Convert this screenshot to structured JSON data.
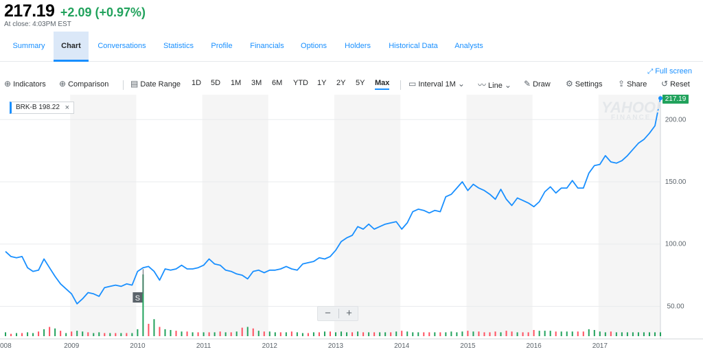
{
  "quote": {
    "price": "217.19",
    "change": "+2.09 (+0.97%)",
    "close_time": "At close: 4:03PM EST"
  },
  "tabs": [
    "Summary",
    "Chart",
    "Conversations",
    "Statistics",
    "Profile",
    "Financials",
    "Options",
    "Holders",
    "Historical Data",
    "Analysts"
  ],
  "active_tab": "Chart",
  "fullscreen_label": "Full screen",
  "toolbar": {
    "indicators": "Indicators",
    "comparison": "Comparison",
    "date_range": "Date Range",
    "ranges": [
      "1D",
      "5D",
      "1M",
      "3M",
      "6M",
      "YTD",
      "1Y",
      "2Y",
      "5Y",
      "Max"
    ],
    "selected_range": "Max",
    "interval": "Interval",
    "interval_value": "1M",
    "line": "Line",
    "draw": "Draw",
    "settings": "Settings",
    "share": "Share",
    "reset": "Reset"
  },
  "legend": {
    "label": "BRK-B 198.22",
    "close": "×"
  },
  "watermark": {
    "line1": "YAHOO!",
    "line2": "FINANCE"
  },
  "zoom": {
    "minus": "−",
    "plus": "+"
  },
  "colors": {
    "line": "#188fff",
    "up": "#21a25c",
    "down": "#ff4f5f",
    "last_price_bg": "#21a25c",
    "shade": "#f5f5f5",
    "grid": "#e9ebed"
  },
  "chart_data": {
    "type": "line",
    "title": "",
    "series": [
      {
        "name": "BRK-B",
        "x": [
          "2008-01",
          "2008-02",
          "2008-03",
          "2008-04",
          "2008-05",
          "2008-06",
          "2008-07",
          "2008-08",
          "2008-09",
          "2008-10",
          "2008-11",
          "2008-12",
          "2009-01",
          "2009-02",
          "2009-03",
          "2009-04",
          "2009-05",
          "2009-06",
          "2009-07",
          "2009-08",
          "2009-09",
          "2009-10",
          "2009-11",
          "2009-12",
          "2010-01",
          "2010-02",
          "2010-03",
          "2010-04",
          "2010-05",
          "2010-06",
          "2010-07",
          "2010-08",
          "2010-09",
          "2010-10",
          "2010-11",
          "2010-12",
          "2011-01",
          "2011-02",
          "2011-03",
          "2011-04",
          "2011-05",
          "2011-06",
          "2011-07",
          "2011-08",
          "2011-09",
          "2011-10",
          "2011-11",
          "2011-12",
          "2012-01",
          "2012-02",
          "2012-03",
          "2012-04",
          "2012-05",
          "2012-06",
          "2012-07",
          "2012-08",
          "2012-09",
          "2012-10",
          "2012-11",
          "2012-12",
          "2013-01",
          "2013-02",
          "2013-03",
          "2013-04",
          "2013-05",
          "2013-06",
          "2013-07",
          "2013-08",
          "2013-09",
          "2013-10",
          "2013-11",
          "2013-12",
          "2014-01",
          "2014-02",
          "2014-03",
          "2014-04",
          "2014-05",
          "2014-06",
          "2014-07",
          "2014-08",
          "2014-09",
          "2014-10",
          "2014-11",
          "2014-12",
          "2015-01",
          "2015-02",
          "2015-03",
          "2015-04",
          "2015-05",
          "2015-06",
          "2015-07",
          "2015-08",
          "2015-09",
          "2015-10",
          "2015-11",
          "2015-12",
          "2016-01",
          "2016-02",
          "2016-03",
          "2016-04",
          "2016-05",
          "2016-06",
          "2016-07",
          "2016-08",
          "2016-09",
          "2016-10",
          "2016-11",
          "2016-12",
          "2017-01",
          "2017-02",
          "2017-03",
          "2017-04",
          "2017-05",
          "2017-06",
          "2017-07",
          "2017-08",
          "2017-09",
          "2017-10",
          "2017-11",
          "2017-12"
        ],
        "values": [
          94,
          90,
          89,
          90,
          81,
          78,
          79,
          88,
          81,
          74,
          68,
          64,
          60,
          52,
          56,
          61,
          60,
          58,
          65,
          66,
          67,
          66,
          68,
          67,
          78,
          81,
          82,
          78,
          71,
          80,
          79,
          80,
          83,
          80,
          80,
          81,
          83,
          88,
          84,
          83,
          79,
          78,
          76,
          75,
          72,
          78,
          79,
          77,
          79,
          79,
          80,
          82,
          80,
          79,
          84,
          85,
          86,
          89,
          88,
          90,
          95,
          102,
          105,
          107,
          114,
          112,
          116,
          112,
          114,
          116,
          117,
          118,
          112,
          117,
          126,
          128,
          127,
          125,
          127,
          126,
          138,
          140,
          145,
          150,
          143,
          148,
          145,
          143,
          140,
          136,
          144,
          136,
          131,
          137,
          135,
          133,
          130,
          134,
          142,
          146,
          141,
          145,
          145,
          151,
          145,
          145,
          157,
          163,
          164,
          171,
          166,
          165,
          167,
          171,
          176,
          181,
          184,
          189,
          195,
          217.19
        ]
      }
    ],
    "volume_up": [
      true,
      false,
      true,
      false,
      true,
      true,
      false,
      true,
      false,
      true,
      false,
      true,
      false,
      true,
      true,
      false,
      true,
      true,
      false,
      true,
      false,
      true,
      false,
      true,
      true,
      true,
      false,
      true,
      false,
      true,
      true,
      false,
      true,
      false,
      true,
      false,
      true,
      false,
      true,
      false,
      true,
      false,
      true,
      false,
      true,
      false,
      true,
      false,
      true,
      true,
      false,
      true,
      false,
      true,
      true,
      false,
      true,
      false,
      true,
      false,
      true,
      true,
      true,
      false,
      true,
      false,
      true,
      false,
      true,
      true,
      false,
      true,
      false,
      true,
      true,
      true,
      false,
      false,
      true,
      false,
      true,
      true,
      true,
      true,
      false,
      true,
      false,
      false,
      false,
      false,
      true,
      false,
      false,
      true,
      false,
      false,
      false,
      true,
      true,
      true,
      false,
      true,
      true,
      true,
      false,
      false,
      true,
      true,
      true,
      true,
      false,
      true,
      true,
      true,
      true,
      true,
      true,
      true,
      true,
      true
    ],
    "volume": [
      5,
      3,
      4,
      4,
      5,
      4,
      6,
      9,
      12,
      10,
      7,
      4,
      6,
      7,
      6,
      5,
      4,
      5,
      4,
      4,
      4,
      4,
      4,
      4,
      9,
      80,
      16,
      22,
      12,
      9,
      8,
      7,
      6,
      6,
      5,
      5,
      5,
      5,
      5,
      6,
      5,
      5,
      6,
      11,
      12,
      10,
      7,
      6,
      6,
      5,
      5,
      5,
      6,
      5,
      4,
      4,
      5,
      5,
      6,
      6,
      5,
      6,
      5,
      5,
      6,
      5,
      5,
      5,
      5,
      5,
      5,
      6,
      7,
      6,
      5,
      5,
      5,
      5,
      5,
      5,
      5,
      6,
      5,
      6,
      7,
      6,
      6,
      5,
      5,
      6,
      5,
      7,
      6,
      5,
      5,
      5,
      8,
      7,
      7,
      7,
      6,
      6,
      6,
      6,
      6,
      6,
      9,
      8,
      6,
      5,
      6,
      5,
      5,
      5,
      5,
      5,
      5,
      5,
      5,
      5
    ],
    "x_ticks": [
      "008",
      "2009",
      "2010",
      "2011",
      "2012",
      "2013",
      "2014",
      "2015",
      "2016",
      "2017"
    ],
    "y_ticks": [
      "50.00",
      "100.00",
      "150.00",
      "200.00"
    ],
    "y_tick_values": [
      50,
      100,
      150,
      200
    ],
    "ylim": [
      26,
      220
    ],
    "last_price_label": "217.19",
    "event_marker": {
      "label": "S",
      "x": "2010-02"
    },
    "grid": true,
    "legend_position": "top-left"
  }
}
